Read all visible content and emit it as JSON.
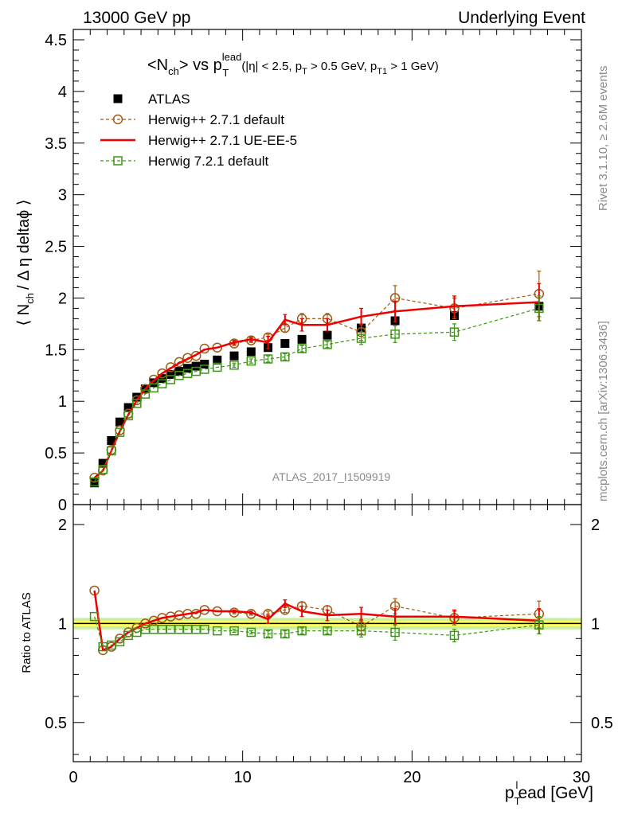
{
  "header": {
    "left": "13000 GeV pp",
    "right": "Underlying Event"
  },
  "side_labels": {
    "rivet": "Rivet 3.1.10, ≥ 2.6M events",
    "mcplots": "mcplots.cern.ch [arXiv:1306.3436]"
  },
  "colors": {
    "atlas": "#000000",
    "herwigpp_default": "#a05a14",
    "herwigpp_ueee5": "#ee0000",
    "herwig7_default": "#3c9614",
    "band_inner": "#ffff66",
    "band_outer": "#c8f0a0"
  },
  "chart_data": [
    {
      "type": "scatter",
      "title": "<N_ch> vs p_T^lead (|η| < 2.5, p_T > 0.5 GeV, p_T1 > 1 GeV)",
      "title_parts": {
        "main": "<N",
        "main_sub": "ch",
        "vs": "> vs p",
        "pt_sup": "lead",
        "pt_sub": "T",
        "cuts_a": "(|η| < 2.5, p",
        "cuts_sub1": "T",
        "cuts_b": " > 0.5 GeV, p",
        "cuts_sub2": "T1",
        "cuts_c": " > 1 GeV)"
      },
      "ylabel": "⟨ N_ch / Δ η deltaϕ ⟩",
      "ylabel_parts": {
        "a": "⟨ N",
        "sub": "ch",
        "b": "/ Δ η deltaϕ ⟩"
      },
      "analysis_tag": "ATLAS_2017_I1509919",
      "xlim": [
        0,
        30
      ],
      "ylim": [
        0,
        4.6
      ],
      "yticks": [
        "0",
        "0.5",
        "1",
        "1.5",
        "2",
        "2.5",
        "3",
        "3.5",
        "4",
        "4.5"
      ],
      "ytick_values": [
        0,
        0.5,
        1,
        1.5,
        2,
        2.5,
        3,
        3.5,
        4,
        4.5
      ],
      "grid": false,
      "legend_position": "top-left",
      "series": [
        {
          "name": "ATLAS",
          "style": "square-marker",
          "x": [
            1.25,
            1.75,
            2.25,
            2.75,
            3.25,
            3.75,
            4.25,
            4.75,
            5.25,
            5.75,
            6.25,
            6.75,
            7.25,
            7.75,
            8.5,
            9.5,
            10.5,
            11.5,
            12.5,
            13.5,
            15.0,
            17.0,
            19.0,
            22.5,
            27.5
          ],
          "y": [
            0.21,
            0.4,
            0.62,
            0.8,
            0.94,
            1.04,
            1.12,
            1.18,
            1.22,
            1.26,
            1.29,
            1.32,
            1.34,
            1.36,
            1.4,
            1.44,
            1.48,
            1.52,
            1.56,
            1.6,
            1.64,
            1.71,
            1.78,
            1.83,
            1.92
          ]
        },
        {
          "name": "Herwig++ 2.7.1 default",
          "style": "dashed-open-circle",
          "x": [
            1.25,
            1.75,
            2.25,
            2.75,
            3.25,
            3.75,
            4.25,
            4.75,
            5.25,
            5.75,
            6.25,
            6.75,
            7.25,
            7.75,
            8.5,
            9.5,
            10.5,
            11.5,
            12.5,
            13.5,
            15.0,
            17.0,
            19.0,
            22.5,
            27.5
          ],
          "y": [
            0.26,
            0.33,
            0.53,
            0.72,
            0.88,
            1.01,
            1.12,
            1.21,
            1.27,
            1.33,
            1.38,
            1.42,
            1.44,
            1.51,
            1.52,
            1.56,
            1.59,
            1.62,
            1.71,
            1.8,
            1.8,
            1.67,
            2.0,
            1.9,
            2.04
          ],
          "yerr": [
            0,
            0,
            0,
            0,
            0,
            0,
            0,
            0,
            0,
            0,
            0,
            0,
            0,
            0,
            0,
            0.02,
            0.02,
            0.03,
            0.04,
            0.05,
            0.05,
            0.08,
            0.12,
            0.1,
            0.22
          ]
        },
        {
          "name": "Herwig++ 2.7.1 UE-EE-5",
          "style": "solid-line",
          "x": [
            1.25,
            1.75,
            2.25,
            2.75,
            3.25,
            3.75,
            4.25,
            4.75,
            5.25,
            5.75,
            6.25,
            6.75,
            7.25,
            7.75,
            8.5,
            9.5,
            10.5,
            11.5,
            12.5,
            13.5,
            15.0,
            17.0,
            19.0,
            22.5,
            27.5
          ],
          "y": [
            0.26,
            0.33,
            0.52,
            0.71,
            0.87,
            1.01,
            1.12,
            1.2,
            1.27,
            1.32,
            1.37,
            1.41,
            1.45,
            1.5,
            1.52,
            1.57,
            1.6,
            1.57,
            1.79,
            1.74,
            1.74,
            1.82,
            1.87,
            1.92,
            1.96
          ],
          "yerr": [
            0,
            0,
            0,
            0,
            0,
            0,
            0,
            0,
            0,
            0,
            0,
            0,
            0,
            0,
            0,
            0.02,
            0.02,
            0.06,
            0.05,
            0.06,
            0.06,
            0.08,
            0.1,
            0.1,
            0.18
          ]
        },
        {
          "name": "Herwig 7.2.1 default",
          "style": "dashed-open-square",
          "x": [
            1.25,
            1.75,
            2.25,
            2.75,
            3.25,
            3.75,
            4.25,
            4.75,
            5.25,
            5.75,
            6.25,
            6.75,
            7.25,
            7.75,
            8.5,
            9.5,
            10.5,
            11.5,
            12.5,
            13.5,
            15.0,
            17.0,
            19.0,
            22.5,
            27.5
          ],
          "y": [
            0.22,
            0.34,
            0.52,
            0.7,
            0.86,
            0.98,
            1.07,
            1.13,
            1.17,
            1.21,
            1.25,
            1.27,
            1.29,
            1.31,
            1.33,
            1.35,
            1.39,
            1.41,
            1.43,
            1.51,
            1.55,
            1.61,
            1.65,
            1.67,
            1.9
          ],
          "yerr": [
            0,
            0,
            0,
            0,
            0,
            0,
            0,
            0,
            0,
            0,
            0,
            0,
            0,
            0,
            0,
            0.02,
            0.02,
            0.03,
            0.03,
            0.03,
            0.03,
            0.06,
            0.08,
            0.08,
            0.12
          ]
        }
      ]
    },
    {
      "type": "scatter",
      "ylabel": "Ratio to ATLAS",
      "xlabel": "p_T^lead [GeV]",
      "xlabel_parts": {
        "a": "p",
        "sub": "T",
        "sup": "l",
        "b": "ead [GeV]"
      },
      "xlim": [
        0,
        30
      ],
      "ylim": [
        0.38,
        2.3
      ],
      "yscale": "log",
      "xticks": [
        "0",
        "10",
        "20",
        "30"
      ],
      "xtick_values": [
        0,
        10,
        20,
        30
      ],
      "yticks": [
        "0.5",
        "1",
        "2"
      ],
      "ytick_values": [
        0.5,
        1,
        2
      ],
      "reference_band": {
        "inner": 0.02,
        "outer": 0.04
      },
      "series": [
        {
          "name": "Herwig++ 2.7.1 default",
          "style": "dashed-open-circle",
          "x": [
            1.25,
            1.75,
            2.25,
            2.75,
            3.25,
            3.75,
            4.25,
            4.75,
            5.25,
            5.75,
            6.25,
            6.75,
            7.25,
            7.75,
            8.5,
            9.5,
            10.5,
            11.5,
            12.5,
            13.5,
            15.0,
            17.0,
            19.0,
            22.5,
            27.5
          ],
          "y": [
            1.26,
            0.83,
            0.85,
            0.9,
            0.94,
            0.97,
            1.0,
            1.02,
            1.04,
            1.05,
            1.06,
            1.07,
            1.07,
            1.1,
            1.09,
            1.08,
            1.07,
            1.07,
            1.1,
            1.13,
            1.1,
            0.98,
            1.13,
            1.04,
            1.07
          ],
          "yerr": [
            0,
            0,
            0,
            0,
            0,
            0,
            0,
            0,
            0,
            0,
            0,
            0,
            0,
            0,
            0,
            0.01,
            0.01,
            0.02,
            0.02,
            0.03,
            0.03,
            0.05,
            0.06,
            0.05,
            0.1
          ]
        },
        {
          "name": "Herwig++ 2.7.1 UE-EE-5",
          "style": "solid-line",
          "x": [
            1.25,
            1.75,
            2.25,
            2.75,
            3.25,
            3.75,
            4.25,
            4.75,
            5.25,
            5.75,
            6.25,
            6.75,
            7.25,
            7.75,
            8.5,
            9.5,
            10.5,
            11.5,
            12.5,
            13.5,
            15.0,
            17.0,
            19.0,
            22.5,
            27.5
          ],
          "y": [
            1.26,
            0.83,
            0.85,
            0.9,
            0.94,
            0.97,
            1.0,
            1.02,
            1.04,
            1.05,
            1.06,
            1.07,
            1.08,
            1.1,
            1.09,
            1.09,
            1.08,
            1.03,
            1.15,
            1.09,
            1.06,
            1.07,
            1.05,
            1.05,
            1.02
          ],
          "yerr": [
            0,
            0,
            0,
            0,
            0,
            0,
            0,
            0,
            0,
            0,
            0,
            0,
            0,
            0,
            0,
            0.01,
            0.01,
            0.03,
            0.03,
            0.04,
            0.04,
            0.05,
            0.06,
            0.05,
            0.09
          ]
        },
        {
          "name": "Herwig 7.2.1 default",
          "style": "dashed-open-square",
          "x": [
            1.25,
            1.75,
            2.25,
            2.75,
            3.25,
            3.75,
            4.25,
            4.75,
            5.25,
            5.75,
            6.25,
            6.75,
            7.25,
            7.75,
            8.5,
            9.5,
            10.5,
            11.5,
            12.5,
            13.5,
            15.0,
            17.0,
            19.0,
            22.5,
            27.5
          ],
          "y": [
            1.05,
            0.85,
            0.86,
            0.88,
            0.92,
            0.94,
            0.96,
            0.96,
            0.96,
            0.96,
            0.96,
            0.96,
            0.96,
            0.96,
            0.95,
            0.95,
            0.94,
            0.93,
            0.93,
            0.95,
            0.95,
            0.95,
            0.94,
            0.92,
            0.99
          ],
          "yerr": [
            0,
            0,
            0,
            0,
            0,
            0,
            0,
            0,
            0,
            0,
            0,
            0,
            0,
            0,
            0,
            0.01,
            0.01,
            0.02,
            0.02,
            0.02,
            0.02,
            0.04,
            0.05,
            0.04,
            0.06
          ]
        }
      ]
    }
  ]
}
